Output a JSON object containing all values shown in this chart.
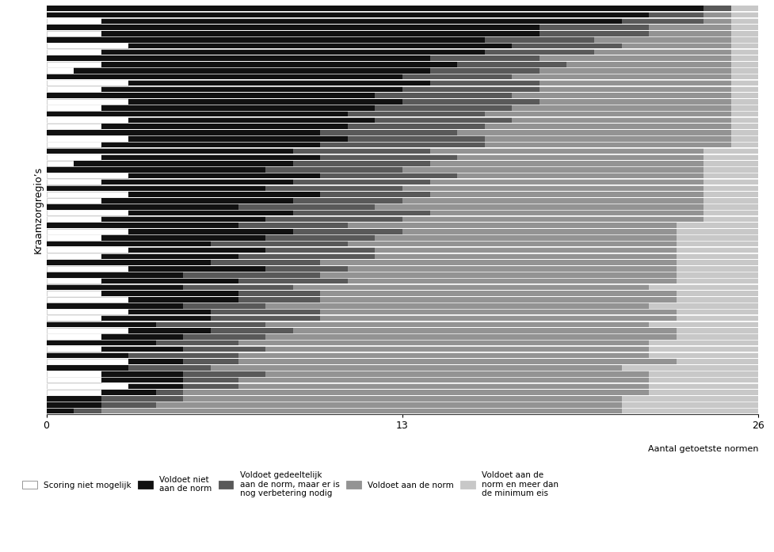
{
  "colors": {
    "white": "#ffffff",
    "black": "#111111",
    "dark_gray": "#595959",
    "medium_gray": "#939393",
    "light_gray": "#c8c8c8"
  },
  "legend_labels": [
    "Scoring niet mogelijk",
    "Voldoet niet\naan de norm",
    "Voldoet gedeeltelijk\naan de norm, maar er is\nnog verbetering nodig",
    "Voldoet aan de norm",
    "Voldoet aan de\nnorm en meer dan\nde minimum eis"
  ],
  "xlabel": "Aantal getoetste normen",
  "ylabel": "Kraamzorgregio’s",
  "xticks": [
    0,
    13,
    26
  ],
  "xlim": [
    0,
    26
  ],
  "bars": [
    [
      0,
      1,
      1,
      19,
      5
    ],
    [
      0,
      2,
      2,
      17,
      5
    ],
    [
      0,
      2,
      3,
      16,
      5
    ],
    [
      2,
      2,
      1,
      17,
      4
    ],
    [
      3,
      2,
      2,
      15,
      4
    ],
    [
      2,
      3,
      2,
      15,
      4
    ],
    [
      2,
      3,
      3,
      14,
      4
    ],
    [
      0,
      3,
      3,
      15,
      5
    ],
    [
      3,
      2,
      2,
      16,
      3
    ],
    [
      0,
      3,
      4,
      15,
      4
    ],
    [
      2,
      3,
      3,
      14,
      4
    ],
    [
      0,
      4,
      3,
      15,
      4
    ],
    [
      2,
      3,
      3,
      15,
      3
    ],
    [
      3,
      3,
      3,
      14,
      3
    ],
    [
      0,
      4,
      4,
      14,
      4
    ],
    [
      2,
      4,
      4,
      13,
      3
    ],
    [
      3,
      3,
      4,
      13,
      3
    ],
    [
      0,
      5,
      3,
      14,
      4
    ],
    [
      3,
      4,
      3,
      13,
      3
    ],
    [
      2,
      5,
      3,
      13,
      3
    ],
    [
      0,
      5,
      4,
      13,
      4
    ],
    [
      2,
      5,
      4,
      12,
      3
    ],
    [
      0,
      5,
      5,
      13,
      3
    ],
    [
      3,
      5,
      3,
      12,
      3
    ],
    [
      0,
      6,
      4,
      13,
      3
    ],
    [
      2,
      5,
      5,
      11,
      3
    ],
    [
      3,
      5,
      4,
      11,
      3
    ],
    [
      0,
      6,
      5,
      12,
      3
    ],
    [
      2,
      6,
      4,
      11,
      3
    ],
    [
      3,
      6,
      4,
      10,
      3
    ],
    [
      0,
      7,
      4,
      12,
      3
    ],
    [
      2,
      6,
      5,
      11,
      2
    ],
    [
      3,
      6,
      5,
      10,
      2
    ],
    [
      0,
      7,
      5,
      12,
      2
    ],
    [
      2,
      7,
      4,
      11,
      2
    ],
    [
      3,
      7,
      4,
      10,
      2
    ],
    [
      0,
      8,
      5,
      11,
      2
    ],
    [
      2,
      7,
      5,
      10,
      2
    ],
    [
      3,
      7,
      5,
      9,
      2
    ],
    [
      0,
      8,
      5,
      11,
      2
    ],
    [
      1,
      8,
      5,
      10,
      2
    ],
    [
      2,
      8,
      5,
      9,
      2
    ],
    [
      0,
      9,
      5,
      10,
      2
    ],
    [
      2,
      8,
      6,
      9,
      1
    ],
    [
      3,
      8,
      5,
      9,
      1
    ],
    [
      0,
      10,
      5,
      10,
      1
    ],
    [
      2,
      9,
      5,
      9,
      1
    ],
    [
      3,
      9,
      5,
      8,
      1
    ],
    [
      0,
      11,
      5,
      9,
      1
    ],
    [
      2,
      10,
      5,
      8,
      1
    ],
    [
      3,
      10,
      5,
      7,
      1
    ],
    [
      0,
      12,
      5,
      8,
      1
    ],
    [
      2,
      11,
      5,
      7,
      1
    ],
    [
      3,
      11,
      4,
      7,
      1
    ],
    [
      0,
      13,
      4,
      8,
      1
    ],
    [
      1,
      13,
      4,
      7,
      1
    ],
    [
      2,
      13,
      4,
      6,
      1
    ],
    [
      0,
      14,
      4,
      7,
      1
    ],
    [
      2,
      14,
      4,
      5,
      1
    ],
    [
      3,
      14,
      4,
      4,
      1
    ],
    [
      0,
      16,
      4,
      5,
      1
    ],
    [
      2,
      16,
      4,
      3,
      1
    ],
    [
      0,
      18,
      4,
      3,
      1
    ],
    [
      2,
      19,
      3,
      1,
      1
    ],
    [
      0,
      22,
      2,
      1,
      1
    ],
    [
      0,
      24,
      1,
      0,
      1
    ]
  ]
}
